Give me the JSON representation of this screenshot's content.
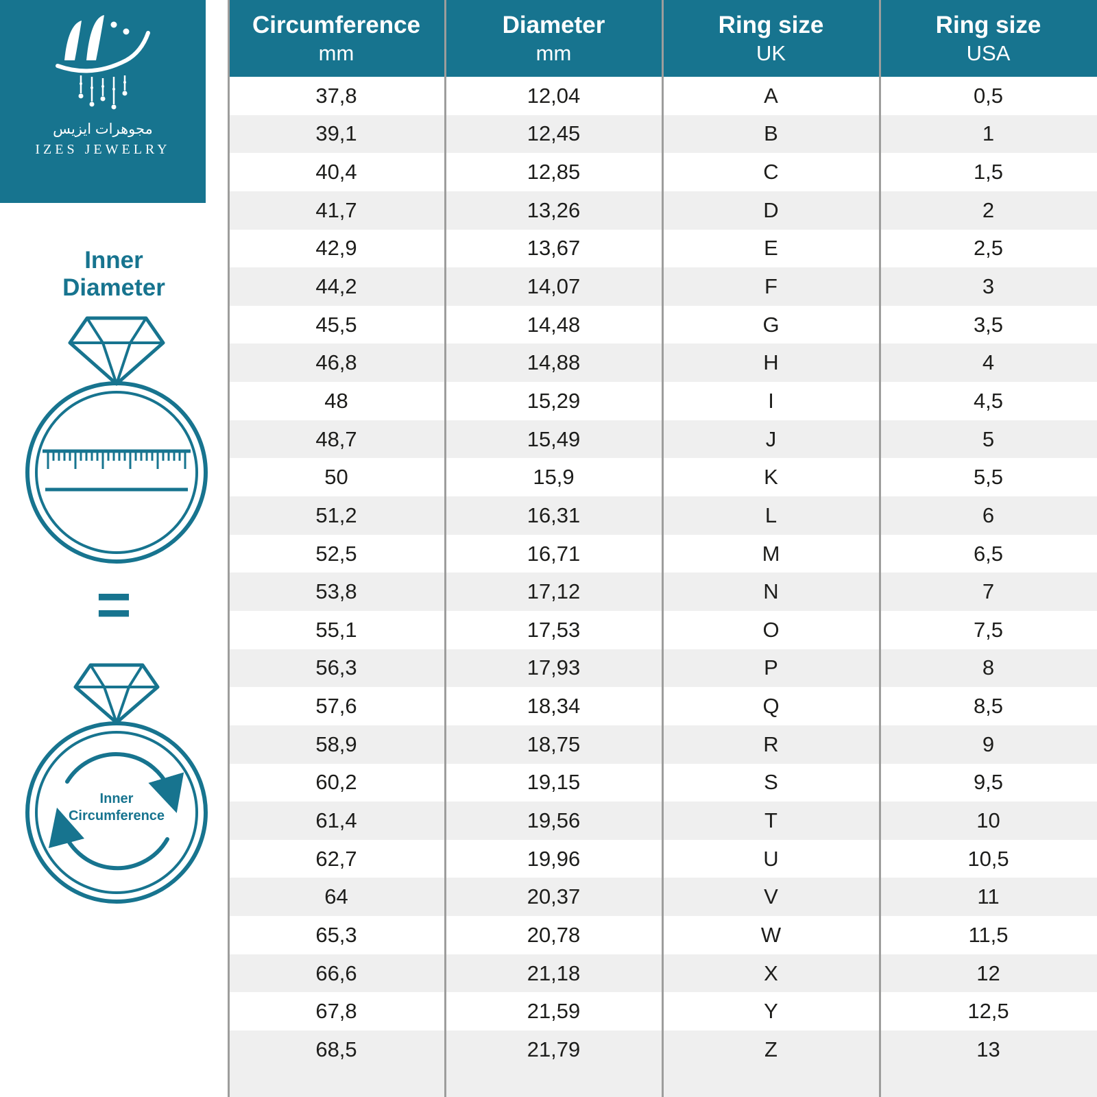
{
  "brand": {
    "name_arabic": "مجوهرات ايزيس",
    "name_latin": "IZES JEWELRY"
  },
  "sidebar": {
    "inner_diameter_label": "Inner\nDiameter",
    "equals_sign": "=",
    "inner_circumference_label": "Inner\nCircumference"
  },
  "table": {
    "headers": [
      {
        "title": "Circumference",
        "subtitle": "mm"
      },
      {
        "title": "Diameter",
        "subtitle": "mm"
      },
      {
        "title": "Ring size",
        "subtitle": "UK"
      },
      {
        "title": "Ring size",
        "subtitle": "USA"
      }
    ]
  },
  "colors": {
    "teal": "#17748f",
    "row_alt": "#efefef",
    "divider": "#9d9d9c",
    "body_text": "#1d1d1b",
    "header_text": "#ffffff"
  },
  "chart_data": {
    "type": "table",
    "columns": [
      "Circumference mm",
      "Diameter mm",
      "Ring size UK",
      "Ring size USA"
    ],
    "rows": [
      [
        "37,8",
        "12,04",
        "A",
        "0,5"
      ],
      [
        "39,1",
        "12,45",
        "B",
        "1"
      ],
      [
        "40,4",
        "12,85",
        "C",
        "1,5"
      ],
      [
        "41,7",
        "13,26",
        "D",
        "2"
      ],
      [
        "42,9",
        "13,67",
        "E",
        "2,5"
      ],
      [
        "44,2",
        "14,07",
        "F",
        "3"
      ],
      [
        "45,5",
        "14,48",
        "G",
        "3,5"
      ],
      [
        "46,8",
        "14,88",
        "H",
        "4"
      ],
      [
        "48",
        "15,29",
        "I",
        "4,5"
      ],
      [
        "48,7",
        "15,49",
        "J",
        "5"
      ],
      [
        "50",
        "15,9",
        "K",
        "5,5"
      ],
      [
        "51,2",
        "16,31",
        "L",
        "6"
      ],
      [
        "52,5",
        "16,71",
        "M",
        "6,5"
      ],
      [
        "53,8",
        "17,12",
        "N",
        "7"
      ],
      [
        "55,1",
        "17,53",
        "O",
        "7,5"
      ],
      [
        "56,3",
        "17,93",
        "P",
        "8"
      ],
      [
        "57,6",
        "18,34",
        "Q",
        "8,5"
      ],
      [
        "58,9",
        "18,75",
        "R",
        "9"
      ],
      [
        "60,2",
        "19,15",
        "S",
        "9,5"
      ],
      [
        "61,4",
        "19,56",
        "T",
        "10"
      ],
      [
        "62,7",
        "19,96",
        "U",
        "10,5"
      ],
      [
        "64",
        "20,37",
        "V",
        "11"
      ],
      [
        "65,3",
        "20,78",
        "W",
        "11,5"
      ],
      [
        "66,6",
        "21,18",
        "X",
        "12"
      ],
      [
        "67,8",
        "21,59",
        "Y",
        "12,5"
      ],
      [
        "68,5",
        "21,79",
        "Z",
        "13"
      ]
    ]
  }
}
